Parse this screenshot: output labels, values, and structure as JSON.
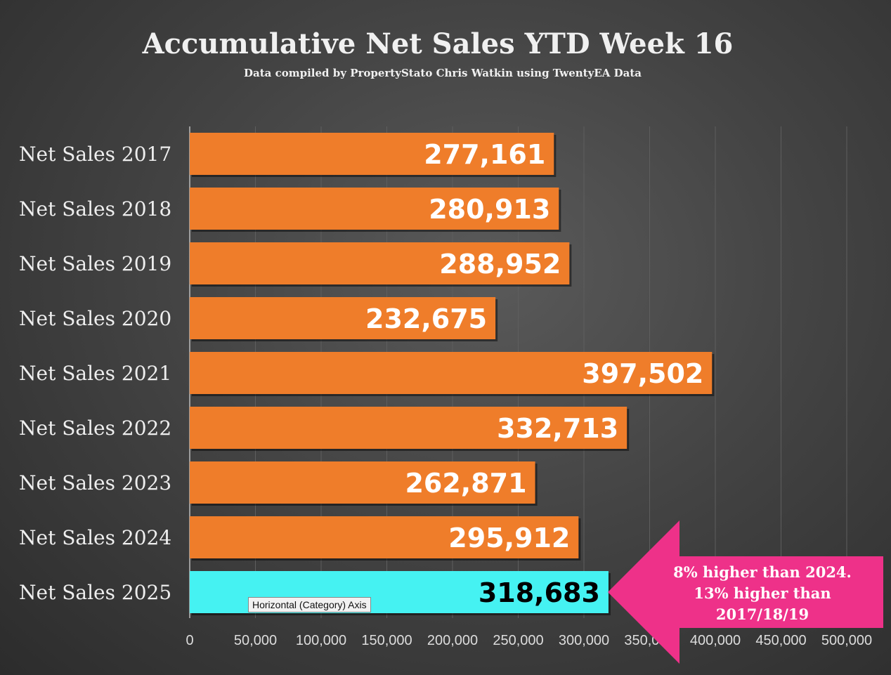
{
  "chart_data": {
    "type": "bar",
    "orientation": "horizontal",
    "title": "Accumulative Net Sales YTD Week 16",
    "subtitle": "Data compiled by PropertyStato Chris Watkin using TwentyEA Data",
    "categories": [
      "Net Sales 2017",
      "Net Sales 2018",
      "Net Sales 2019",
      "Net Sales 2020",
      "Net Sales 2021",
      "Net Sales 2022",
      "Net Sales 2023",
      "Net Sales 2024",
      "Net Sales 2025"
    ],
    "values": [
      277161,
      280913,
      288952,
      232675,
      397502,
      332713,
      262871,
      295912,
      318683
    ],
    "value_labels": [
      "277,161",
      "280,913",
      "288,952",
      "232,675",
      "397,502",
      "332,713",
      "262,871",
      "295,912",
      "318,683"
    ],
    "colors": [
      "#ef7d2a",
      "#ef7d2a",
      "#ef7d2a",
      "#ef7d2a",
      "#ef7d2a",
      "#ef7d2a",
      "#ef7d2a",
      "#ef7d2a",
      "#45f2f2"
    ],
    "xlim": [
      0,
      500000
    ],
    "xticks": [
      "0",
      "50,000",
      "100,000",
      "150,000",
      "200,000",
      "250,000",
      "300,000",
      "350,000",
      "400,000",
      "450,000",
      "500,000"
    ],
    "grid": true,
    "annotation": [
      "8% higher than 2024.",
      "13% higher than",
      "2017/18/19"
    ],
    "annotation_color": "#ee3189"
  },
  "tooltip": "Horizontal (Category) Axis"
}
